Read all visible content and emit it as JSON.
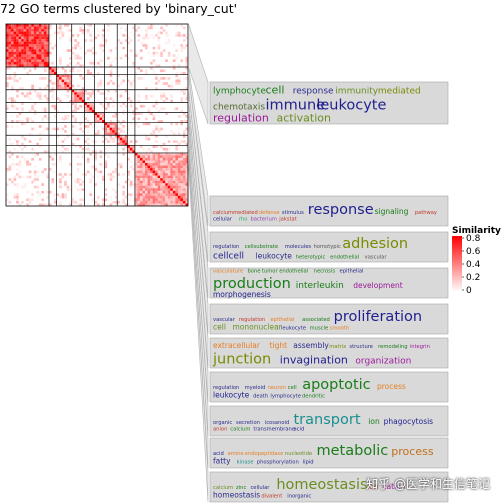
{
  "title": "72 GO terms clustered by 'binary_cut'",
  "watermark": "知乎 @医学和生信笔记",
  "chart_data": {
    "type": "heatmap",
    "title": "72 GO terms clustered by 'binary_cut'",
    "n_terms": 72,
    "legend": {
      "title": "Similarity",
      "ticks": [
        "0.8",
        "0.6",
        "0.4",
        "0.2",
        "0"
      ],
      "range": [
        0,
        0.8
      ],
      "colors": [
        "#ffffff",
        "#ff0000"
      ]
    },
    "clusters": [
      {
        "size": 17,
        "words": [
          {
            "text": "lymphocyte",
            "size": "m",
            "color": "#1a7d1a"
          },
          {
            "text": "cell",
            "size": "l",
            "color": "#1a7d1a"
          },
          {
            "text": "response",
            "size": "m",
            "color": "#2b2b8c"
          },
          {
            "text": "immunity",
            "size": "m",
            "color": "#6b8e23"
          },
          {
            "text": "mediated",
            "size": "m",
            "color": "#7a8a00"
          },
          {
            "text": "chemotaxis",
            "size": "m",
            "color": "#556b2f"
          },
          {
            "text": "immune",
            "size": "xl",
            "color": "#1f1f8f"
          },
          {
            "text": "leukocyte",
            "size": "xl",
            "color": "#1f1f8f"
          },
          {
            "text": "regulation",
            "size": "l",
            "color": "#9b1b9b"
          },
          {
            "text": "activation",
            "size": "l",
            "color": "#6b8e23"
          }
        ]
      },
      {
        "size": 3,
        "words": [
          {
            "text": "calciummediated",
            "size": "xs",
            "color": "#c0392b"
          },
          {
            "text": "defense",
            "size": "xs",
            "color": "#e67e22"
          },
          {
            "text": "stimulus",
            "size": "xs",
            "color": "#2b2b8c"
          },
          {
            "text": "response",
            "size": "xl",
            "color": "#1f1f8f"
          },
          {
            "text": "signaling",
            "size": "s",
            "color": "#1a7d1a"
          },
          {
            "text": "pathway",
            "size": "xs",
            "color": "#c0392b"
          },
          {
            "text": "cellular",
            "size": "xs",
            "color": "#2b2b8c"
          },
          {
            "text": "rho",
            "size": "xs",
            "color": "#27ae60"
          },
          {
            "text": "bacterium",
            "size": "xs",
            "color": "#8e44ad"
          },
          {
            "text": "jakstat",
            "size": "xs",
            "color": "#c0392b"
          }
        ]
      },
      {
        "size": 6,
        "words": [
          {
            "text": "regulation",
            "size": "xs",
            "color": "#2b2b8c"
          },
          {
            "text": "cellsubstrate",
            "size": "xs",
            "color": "#1a7d1a"
          },
          {
            "text": "molecules",
            "size": "xs",
            "color": "#2b2b8c"
          },
          {
            "text": "homotypic",
            "size": "xs",
            "color": "#555555"
          },
          {
            "text": "adhesion",
            "size": "xl",
            "color": "#7a8a00"
          },
          {
            "text": "cellcell",
            "size": "m",
            "color": "#1f1f8f"
          },
          {
            "text": "leukocyte",
            "size": "s",
            "color": "#2b2b8c"
          },
          {
            "text": "heterotypic",
            "size": "xs",
            "color": "#1a7d1a"
          },
          {
            "text": "endothelial",
            "size": "xs",
            "color": "#1a7d1a"
          },
          {
            "text": "vascular",
            "size": "xs",
            "color": "#555555"
          }
        ]
      },
      {
        "size": 5,
        "words": [
          {
            "text": "vasculature",
            "size": "xs",
            "color": "#e67e22"
          },
          {
            "text": "bone",
            "size": "xs",
            "color": "#1a7d1a"
          },
          {
            "text": "tumor",
            "size": "xs",
            "color": "#1a7d1a"
          },
          {
            "text": "endothelial",
            "size": "xs",
            "color": "#1a7d1a"
          },
          {
            "text": "necrosis",
            "size": "xs",
            "color": "#1a7d1a"
          },
          {
            "text": "epithelial",
            "size": "xs",
            "color": "#2b2b8c"
          },
          {
            "text": "production",
            "size": "xl",
            "color": "#1a7d1a"
          },
          {
            "text": "interleukin",
            "size": "m",
            "color": "#1a7d1a"
          },
          {
            "text": "development",
            "size": "s",
            "color": "#9b1b9b"
          },
          {
            "text": "morphogenesis",
            "size": "s",
            "color": "#1f1f8f"
          }
        ]
      },
      {
        "size": 4,
        "words": [
          {
            "text": "vascular",
            "size": "xs",
            "color": "#2b2b8c"
          },
          {
            "text": "regulation",
            "size": "xs",
            "color": "#c0392b"
          },
          {
            "text": "epithelial",
            "size": "xs",
            "color": "#e67e22"
          },
          {
            "text": "associated",
            "size": "xs",
            "color": "#1a7d1a"
          },
          {
            "text": "proliferation",
            "size": "xl",
            "color": "#1f1f8f"
          },
          {
            "text": "cell",
            "size": "s",
            "color": "#6b8e23"
          },
          {
            "text": "mononuclear",
            "size": "s",
            "color": "#6b8e23"
          },
          {
            "text": "leukocyte",
            "size": "xs",
            "color": "#2b2b8c"
          },
          {
            "text": "muscle",
            "size": "xs",
            "color": "#1a7d1a"
          },
          {
            "text": "smooth",
            "size": "xs",
            "color": "#e67e22"
          }
        ]
      },
      {
        "size": 4,
        "words": [
          {
            "text": "extracellular",
            "size": "s",
            "color": "#e67e22"
          },
          {
            "text": "tight",
            "size": "s",
            "color": "#e67e22"
          },
          {
            "text": "assembly",
            "size": "s",
            "color": "#2b2b8c"
          },
          {
            "text": "matrix",
            "size": "xs",
            "color": "#7a8a00"
          },
          {
            "text": "structure",
            "size": "xs",
            "color": "#2b2b8c"
          },
          {
            "text": "remodeling",
            "size": "xs",
            "color": "#1a7d1a"
          },
          {
            "text": "integrin",
            "size": "xs",
            "color": "#9b1b9b"
          },
          {
            "text": "junction",
            "size": "xl",
            "color": "#7a8a00"
          },
          {
            "text": "invagination",
            "size": "l",
            "color": "#1f1f8f"
          },
          {
            "text": "organization",
            "size": "m",
            "color": "#9b1b9b"
          }
        ]
      },
      {
        "size": 5,
        "words": [
          {
            "text": "regulation",
            "size": "xs",
            "color": "#2b2b8c"
          },
          {
            "text": "myeloid",
            "size": "xs",
            "color": "#2b2b8c"
          },
          {
            "text": "neuron",
            "size": "xs",
            "color": "#e67e22"
          },
          {
            "text": "cell",
            "size": "xs",
            "color": "#1a7d1a"
          },
          {
            "text": "apoptotic",
            "size": "xl",
            "color": "#1a7d1a"
          },
          {
            "text": "process",
            "size": "s",
            "color": "#e67e22"
          },
          {
            "text": "leukocyte",
            "size": "s",
            "color": "#1f1f8f"
          },
          {
            "text": "death",
            "size": "xs",
            "color": "#2b2b8c"
          },
          {
            "text": "lymphocyte",
            "size": "xs",
            "color": "#2b2b8c"
          },
          {
            "text": "dendritic",
            "size": "xs",
            "color": "#1a7d1a"
          }
        ]
      },
      {
        "size": 4,
        "words": [
          {
            "text": "organic",
            "size": "xs",
            "color": "#2b2b8c"
          },
          {
            "text": "secretion",
            "size": "xs",
            "color": "#2b2b8c"
          },
          {
            "text": "icosanoid",
            "size": "xs",
            "color": "#2b2b8c"
          },
          {
            "text": "transport",
            "size": "xl",
            "color": "#1a8f8f"
          },
          {
            "text": "ion",
            "size": "s",
            "color": "#1a7d1a"
          },
          {
            "text": "phagocytosis",
            "size": "s",
            "color": "#1f1f8f"
          },
          {
            "text": "anion",
            "size": "xs",
            "color": "#c0392b"
          },
          {
            "text": "calcium",
            "size": "xs",
            "color": "#1a7d1a"
          },
          {
            "text": "transmembrane",
            "size": "xs",
            "color": "#2b2b8c"
          },
          {
            "text": "acid",
            "size": "xs",
            "color": "#1f1f8f"
          }
        ]
      },
      {
        "size": 3,
        "words": [
          {
            "text": "acid",
            "size": "xs",
            "color": "#1f1f8f"
          },
          {
            "text": "amine",
            "size": "xs",
            "color": "#e67e22"
          },
          {
            "text": "endopeptidase",
            "size": "xs",
            "color": "#e67e22"
          },
          {
            "text": "nucleotide",
            "size": "xs",
            "color": "#6b8e23"
          },
          {
            "text": "metabolic",
            "size": "xl",
            "color": "#1a7d1a"
          },
          {
            "text": "process",
            "size": "l",
            "color": "#c0701b"
          },
          {
            "text": "fatty",
            "size": "s",
            "color": "#2b2b8c"
          },
          {
            "text": "kinase",
            "size": "xs",
            "color": "#1a8f8f"
          },
          {
            "text": "phosphorylation",
            "size": "xs",
            "color": "#2b2b8c"
          },
          {
            "text": "lipid",
            "size": "xs",
            "color": "#1f1f8f"
          }
        ]
      },
      {
        "size": 4,
        "words": [
          {
            "text": "calcium",
            "size": "xs",
            "color": "#6b8e23"
          },
          {
            "text": "zinc",
            "size": "xs",
            "color": "#1a7d1a"
          },
          {
            "text": "cellular",
            "size": "xs",
            "color": "#2b2b8c"
          },
          {
            "text": "homeostasis",
            "size": "xl",
            "color": "#6b8e23"
          },
          {
            "text": "ion",
            "size": "s",
            "color": "#c0392b"
          },
          {
            "text": "cation",
            "size": "s",
            "color": "#9b1b9b"
          },
          {
            "text": "homeostasis",
            "size": "s",
            "color": "#2b2b8c"
          },
          {
            "text": "divalent",
            "size": "xs",
            "color": "#c0392b"
          },
          {
            "text": "inorganic",
            "size": "xs",
            "color": "#1f1f8f"
          }
        ]
      }
    ]
  }
}
